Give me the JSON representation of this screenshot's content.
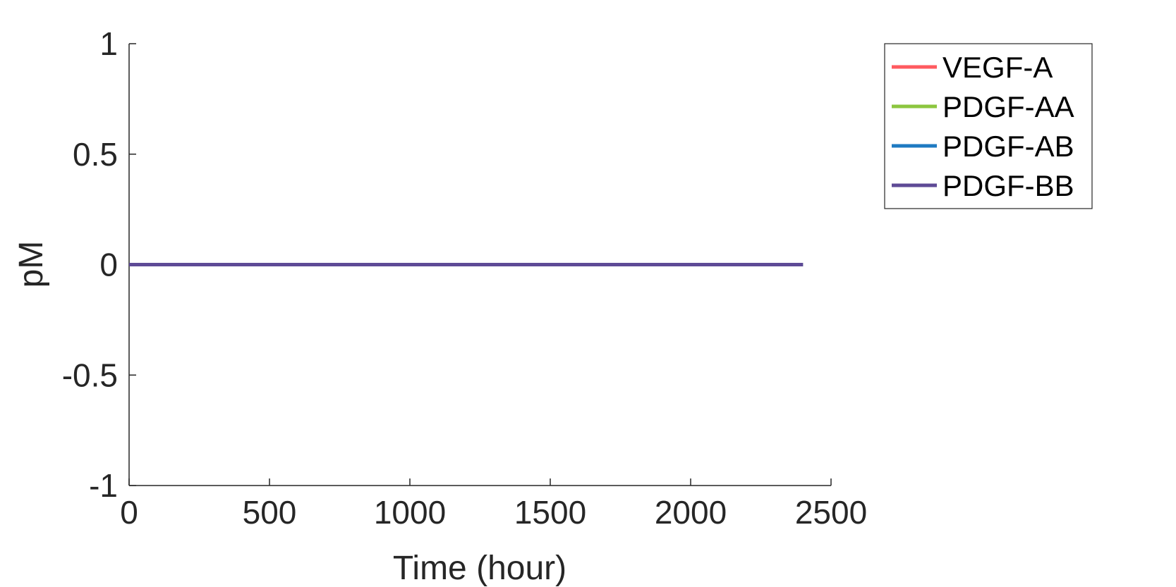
{
  "chart_data": {
    "type": "line",
    "xlabel": "Time (hour)",
    "ylabel": "pM",
    "xlim": [
      0,
      2500
    ],
    "ylim": [
      -1,
      1
    ],
    "xticks": [
      0,
      500,
      1000,
      1500,
      2000,
      2500
    ],
    "yticks": [
      -1,
      -0.5,
      0,
      0.5,
      1
    ],
    "xtick_labels": [
      "0",
      "500",
      "1000",
      "1500",
      "2000",
      "2500"
    ],
    "ytick_labels": [
      "-1",
      "-0.5",
      "0",
      "0.5",
      "1"
    ],
    "grid": false,
    "legend_position": "top-right",
    "series": [
      {
        "name": "VEGF-A",
        "color": "#ff5a5f",
        "x": [
          0,
          2400
        ],
        "y": [
          0,
          0
        ]
      },
      {
        "name": "PDGF-AA",
        "color": "#8cc63f",
        "x": [
          0,
          2400
        ],
        "y": [
          0,
          0
        ]
      },
      {
        "name": "PDGF-AB",
        "color": "#1f7ac2",
        "x": [
          0,
          2400
        ],
        "y": [
          0,
          0
        ]
      },
      {
        "name": "PDGF-BB",
        "color": "#5e4a96",
        "x": [
          0,
          2400
        ],
        "y": [
          0,
          0
        ]
      }
    ]
  }
}
